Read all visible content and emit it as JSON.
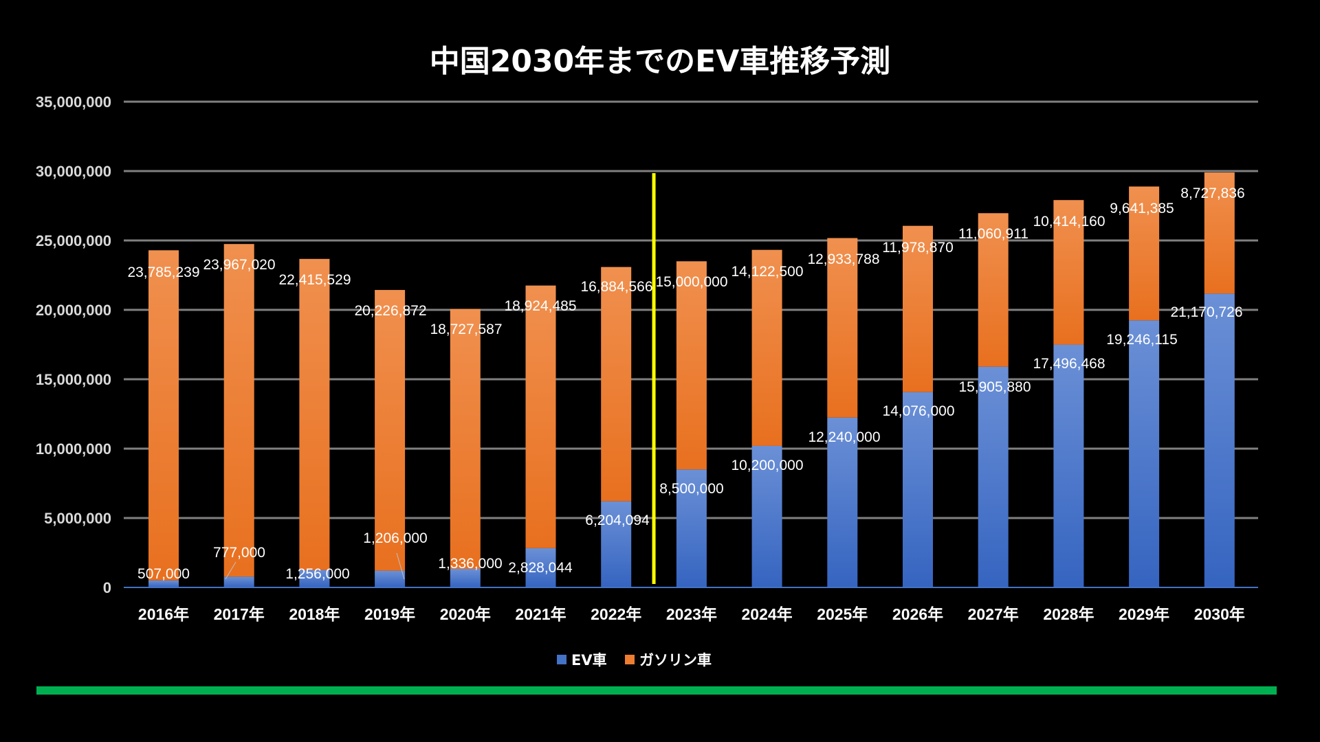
{
  "chart_data": {
    "type": "bar",
    "stacked": true,
    "title": "中国2030年までのEV車推移予測",
    "categories": [
      "2016年",
      "2017年",
      "2018年",
      "2019年",
      "2020年",
      "2021年",
      "2022年",
      "2023年",
      "2024年",
      "2025年",
      "2026年",
      "2027年",
      "2028年",
      "2029年",
      "2030年"
    ],
    "series": [
      {
        "name": "EV車",
        "color": "#4472c4",
        "values": [
          507000,
          777000,
          1256000,
          1206000,
          1336000,
          2828044,
          6204094,
          8500000,
          10200000,
          12240000,
          14076000,
          15905880,
          17496468,
          19246115,
          21170726
        ],
        "labels": [
          "507,000",
          "777,000",
          "1,256,000",
          "1,206,000",
          "1,336,000",
          "2,828,044",
          "6,204,094",
          "8,500,000",
          "10,200,000",
          "12,240,000",
          "14,076,000",
          "15,905,880",
          "17,496,468",
          "19,246,115",
          "21,170,726"
        ]
      },
      {
        "name": "ガソリン車",
        "color": "#ed7d31",
        "values": [
          23785239,
          23967020,
          22415529,
          20226872,
          18727587,
          18924485,
          16884566,
          15000000,
          14122500,
          12933788,
          11978870,
          11060911,
          10414160,
          9641385,
          8727836
        ],
        "labels": [
          "23,785,239",
          "23,967,020",
          "22,415,529",
          "20,226,872",
          "18,727,587",
          "18,924,485",
          "16,884,566",
          "15,000,000",
          "14,122,500",
          "12,933,788",
          "11,978,870",
          "11,060,911",
          "10,414,160",
          "9,641,385",
          "8,727,836"
        ]
      }
    ],
    "ylim": [
      0,
      35000000
    ],
    "yticks": [
      "0",
      "5,000,000",
      "10,000,000",
      "15,000,000",
      "20,000,000",
      "25,000,000",
      "30,000,000",
      "35,000,000"
    ],
    "grid": true,
    "legend": "bottom-center",
    "annotation": "yellow vertical divider between 2022年 and 2023年",
    "accent_colors": {
      "divider": "#ffff00",
      "footer_line": "#00b050"
    }
  }
}
